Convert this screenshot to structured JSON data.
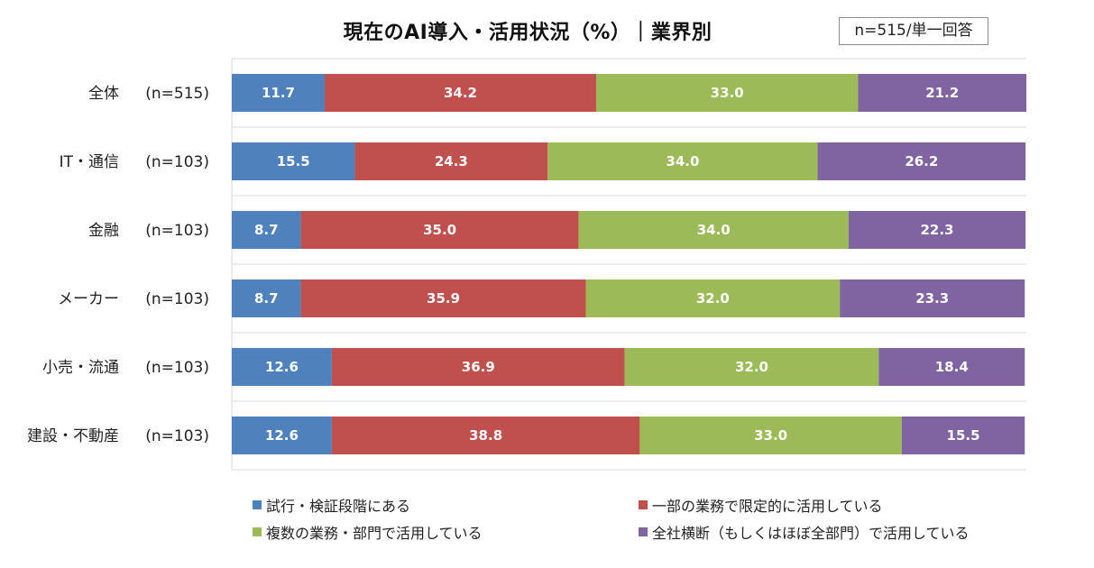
{
  "header": {
    "title": "現在のAI導入・活用状況（%）｜業界別",
    "sample_note": "n=515/単一回答"
  },
  "chart_data": {
    "type": "bar",
    "orientation": "horizontal",
    "stacked": true,
    "title": "現在のAI導入・活用状況（%）｜業界別",
    "xlim": [
      0,
      100.1
    ],
    "grid": true,
    "legend_position": "bottom",
    "categories": [
      {
        "name": "全体",
        "n": "(n=515)"
      },
      {
        "name": "IT・通信",
        "n": "(n=103)"
      },
      {
        "name": "金融",
        "n": "(n=103)"
      },
      {
        "name": "メーカー",
        "n": "(n=103)"
      },
      {
        "name": "小売・流通",
        "n": "(n=103)"
      },
      {
        "name": "建設・不動産",
        "n": "(n=103)"
      }
    ],
    "series": [
      {
        "name": "試行・検証段階にある",
        "color": "#4f81bd",
        "values": [
          11.7,
          15.5,
          8.7,
          8.7,
          12.6,
          12.6
        ],
        "labels": [
          "11.7",
          "15.5",
          "8.7",
          "8.7",
          "12.6",
          "12.6"
        ]
      },
      {
        "name": "一部の業務で限定的に活用している",
        "color": "#c0504d",
        "values": [
          34.2,
          24.3,
          35.0,
          35.9,
          36.9,
          38.8
        ],
        "labels": [
          "34.2",
          "24.3",
          "35.0",
          "35.9",
          "36.9",
          "38.8"
        ]
      },
      {
        "name": "複数の業務・部門で活用している",
        "color": "#9bbb59",
        "values": [
          33.0,
          34.0,
          34.0,
          32.0,
          32.0,
          33.0
        ],
        "labels": [
          "33.0",
          "34.0",
          "34.0",
          "32.0",
          "32.0",
          "33.0"
        ]
      },
      {
        "name": "全社横断（もしくはほぼ全部門）で活用している",
        "color": "#8064a2",
        "values": [
          21.2,
          26.2,
          22.3,
          23.3,
          18.4,
          15.5
        ],
        "labels": [
          "21.2",
          "26.2",
          "22.3",
          "23.3",
          "18.4",
          "15.5"
        ]
      }
    ]
  }
}
